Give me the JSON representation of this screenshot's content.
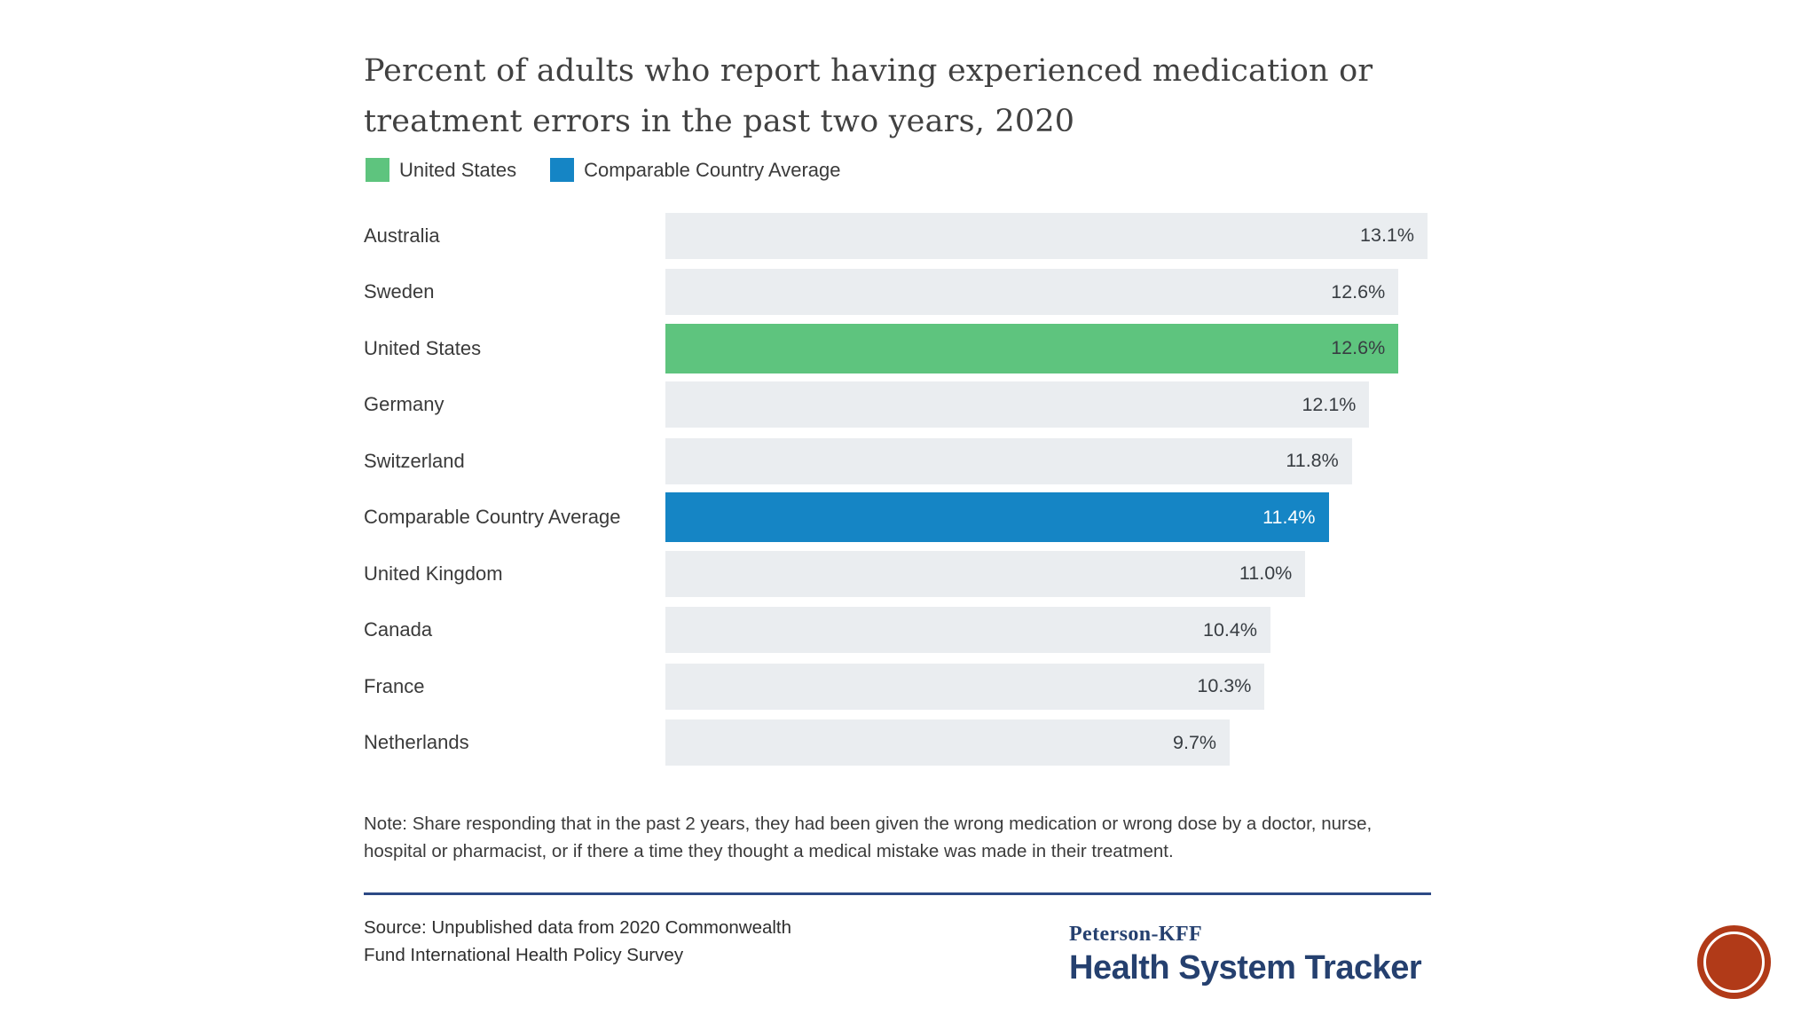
{
  "header": {
    "title_lines": [
      "Percent of adults who report having experienced medication or",
      "treatment errors in the past two years, 2020"
    ]
  },
  "legend": {
    "items": [
      {
        "label": "United States",
        "color": "#5ec47e"
      },
      {
        "label": "Comparable Country Average",
        "color": "#1585c5"
      }
    ]
  },
  "chart_data": {
    "type": "bar",
    "orientation": "horizontal",
    "title": "Percent of adults who report having experienced medication or treatment errors in the past two years, 2020",
    "categories": [
      "Australia",
      "Sweden",
      "United States",
      "Germany",
      "Switzerland",
      "Comparable Country Average",
      "United Kingdom",
      "Canada",
      "France",
      "Netherlands"
    ],
    "values": [
      13.1,
      12.6,
      12.6,
      12.1,
      11.8,
      11.4,
      11.0,
      10.4,
      10.3,
      9.7
    ],
    "value_labels": [
      "13.1%",
      "12.6%",
      "12.6%",
      "12.1%",
      "11.8%",
      "11.4%",
      "11.0%",
      "10.4%",
      "10.3%",
      "9.7%"
    ],
    "xlim": [
      0,
      13.1
    ],
    "grid": false,
    "legend_position": "top",
    "colors": {
      "default_bar": "#eaedf0",
      "united_states_bar": "#5ec47e",
      "comparable_average_bar": "#1585c5"
    },
    "highlighted": {
      "united_states_index": 2,
      "comparable_average_index": 5
    }
  },
  "note": "Note: Share responding that in the past 2 years, they had been given the wrong medication or wrong dose by a doctor, nurse, hospital or pharmacist, or if there a time they thought a medical mistake was made in their treatment.",
  "source": "Source: Unpublished data from 2020 Commonwealth Fund International Health Policy Survey",
  "branding": {
    "brand_line": "Peterson-KFF",
    "brand_name": "Health System Tracker",
    "navy": "#25406f",
    "stamp_color": "#b13a18"
  }
}
